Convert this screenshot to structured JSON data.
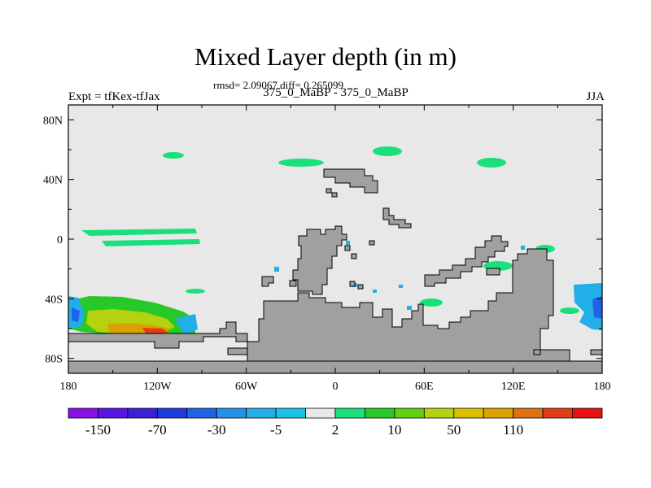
{
  "figure": {
    "title": "Mixed Layer depth (in m)",
    "stats": "rmsd= 2.09067 diff= 0.265099",
    "left_label": "Expt = tfKex-tfJax",
    "center_label": "375_0_MaBP - 375_0_MaBP",
    "right_label": "JJA"
  },
  "map": {
    "projection": "cylindrical-equidistant",
    "lon_range": [
      -180,
      180
    ],
    "lat_range": [
      -90,
      90
    ],
    "x_ticks": [
      "180",
      "120W",
      "60W",
      "0",
      "60E",
      "120E",
      "180"
    ],
    "y_ticks": [
      "80N",
      "40N",
      "0",
      "40S",
      "80S"
    ],
    "land_color": "#a0a0a0",
    "ocean_color": "#e8e8e8"
  },
  "colorbar": {
    "colors": [
      "#8a10e6",
      "#5a14e6",
      "#3c1ed8",
      "#1d3ce0",
      "#1f63e8",
      "#2492e8",
      "#22aee6",
      "#19c4e8",
      "#e8e8e8",
      "#1ae07c",
      "#28c828",
      "#60d010",
      "#b4d20e",
      "#d8c000",
      "#dca000",
      "#e07010",
      "#e03c18",
      "#e81010"
    ],
    "labels": [
      "-150",
      "-70",
      "-30",
      "-5",
      "2",
      "10",
      "50",
      "110"
    ]
  }
}
